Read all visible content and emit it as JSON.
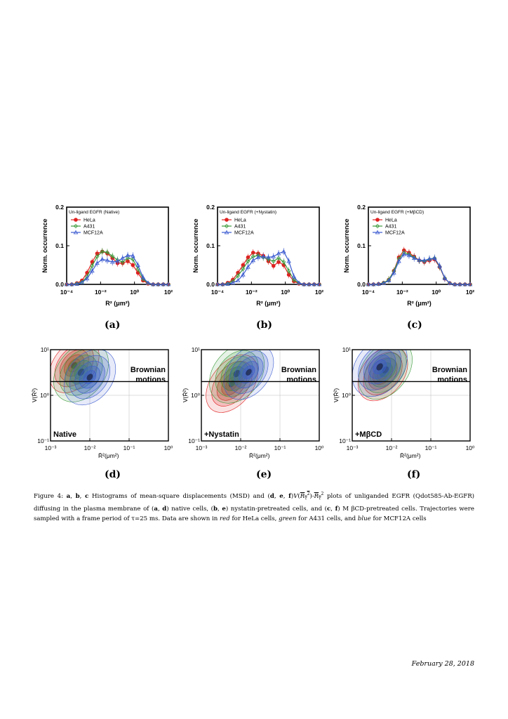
{
  "figure_number": "Figure 4:",
  "caption": {
    "parts_ab": "a",
    "b": "b",
    "c": "c",
    "text1": "Histograms of mean-square displacements (MSD) and",
    "d": "d",
    "e": "e",
    "f": "f",
    "text2": "plots of unliganded EGFR (Qdot585-Ab-EGFR) diffusing in the plasma membrane of",
    "text3": "native cells,",
    "text4": "nystatin-pretreated cells, and",
    "text5": "M βCD-pretreated cells. Trajectories were sampled with a frame period of τ=25 ms. Data are shown in",
    "red_word": "red",
    "text6": "for HeLa cells,",
    "green_word": "green",
    "text7": "for A431 cells, and",
    "blue_word": "blue",
    "text8": "for MCF12A cells"
  },
  "footer_date": "February 28, 2018",
  "panel_labels": [
    "(a)",
    "(b)",
    "(c)",
    "(d)",
    "(e)",
    "(f)"
  ],
  "colors": {
    "hela": "#e02020",
    "a431": "#3a9a3a",
    "mcf12a": "#3a5ad0"
  },
  "chart_data": [
    {
      "type": "line",
      "title": "Un-ligand EGFR (Native)",
      "xlabel": "R² (μm²)",
      "ylabel": "Norm. occurrence",
      "x_scale": "log",
      "xlim": [
        0.0001,
        100
      ],
      "ylim": [
        0,
        0.2
      ],
      "x_ticks": [
        "10⁻⁴",
        "10⁻²",
        "10⁰",
        "10²"
      ],
      "y_ticks": [
        "0.0",
        "0.1",
        "0.2"
      ],
      "x": [
        0.0001,
        0.0002,
        0.0004,
        0.0008,
        0.0016,
        0.0032,
        0.0063,
        0.0126,
        0.025,
        0.05,
        0.1,
        0.2,
        0.4,
        0.8,
        1.6,
        3.2,
        6.3,
        12.6,
        25,
        50,
        100
      ],
      "series": [
        {
          "name": "HeLa",
          "values": [
            0.0,
            0.0,
            0.003,
            0.01,
            0.03,
            0.058,
            0.08,
            0.085,
            0.08,
            0.068,
            0.055,
            0.055,
            0.06,
            0.05,
            0.03,
            0.01,
            0.002,
            0.0,
            0.0,
            0.0,
            0.0
          ]
        },
        {
          "name": "A431",
          "values": [
            0.0,
            0.0,
            0.002,
            0.006,
            0.02,
            0.048,
            0.072,
            0.085,
            0.083,
            0.073,
            0.063,
            0.058,
            0.068,
            0.065,
            0.04,
            0.014,
            0.003,
            0.0,
            0.0,
            0.0,
            0.0
          ]
        },
        {
          "name": "MCF12A",
          "values": [
            0.0,
            0.0,
            0.001,
            0.005,
            0.015,
            0.035,
            0.055,
            0.065,
            0.062,
            0.058,
            0.06,
            0.068,
            0.075,
            0.074,
            0.05,
            0.018,
            0.004,
            0.0,
            0.0,
            0.0,
            0.0
          ]
        }
      ]
    },
    {
      "type": "line",
      "title": "Un-ligand EGFR (+Nystatin)",
      "xlabel": "R² (μm²)",
      "ylabel": "Norm. occurrence",
      "x_scale": "log",
      "xlim": [
        0.0001,
        100
      ],
      "ylim": [
        0,
        0.2
      ],
      "x_ticks": [
        "10⁻⁴",
        "10⁻²",
        "10⁰",
        "10²"
      ],
      "y_ticks": [
        "0.0",
        "0.1",
        "0.2"
      ],
      "x": [
        0.0001,
        0.0002,
        0.0004,
        0.0008,
        0.0016,
        0.0032,
        0.0063,
        0.0126,
        0.025,
        0.05,
        0.1,
        0.2,
        0.4,
        0.8,
        1.6,
        3.2,
        6.3,
        12.6,
        25,
        50,
        100
      ],
      "series": [
        {
          "name": "HeLa",
          "values": [
            0.0,
            0.0,
            0.004,
            0.012,
            0.03,
            0.05,
            0.07,
            0.082,
            0.08,
            0.074,
            0.06,
            0.048,
            0.058,
            0.05,
            0.025,
            0.008,
            0.002,
            0.0,
            0.0,
            0.0,
            0.0
          ]
        },
        {
          "name": "A431",
          "values": [
            0.0,
            0.0,
            0.002,
            0.008,
            0.022,
            0.04,
            0.06,
            0.072,
            0.075,
            0.07,
            0.065,
            0.06,
            0.068,
            0.058,
            0.035,
            0.012,
            0.003,
            0.0,
            0.0,
            0.0,
            0.0
          ]
        },
        {
          "name": "MCF12A",
          "values": [
            0.0,
            0.0,
            0.001,
            0.004,
            0.01,
            0.025,
            0.045,
            0.062,
            0.07,
            0.072,
            0.07,
            0.072,
            0.08,
            0.085,
            0.06,
            0.02,
            0.004,
            0.0,
            0.0,
            0.0,
            0.0
          ]
        }
      ]
    },
    {
      "type": "line",
      "title": "Un-ligand EGFR (+MβCD)",
      "xlabel": "R² (μm²)",
      "ylabel": "Norm. occurrence",
      "x_scale": "log",
      "xlim": [
        0.0001,
        100
      ],
      "ylim": [
        0,
        0.2
      ],
      "x_ticks": [
        "10⁻⁴",
        "10⁻²",
        "10⁰",
        "10²"
      ],
      "y_ticks": [
        "0.0",
        "0.1",
        "0.2"
      ],
      "x": [
        0.0001,
        0.0002,
        0.0004,
        0.0008,
        0.0016,
        0.0032,
        0.0063,
        0.0126,
        0.025,
        0.05,
        0.1,
        0.2,
        0.4,
        0.8,
        1.6,
        3.2,
        6.3,
        12.6,
        25,
        50,
        100
      ],
      "series": [
        {
          "name": "HeLa",
          "values": [
            0.0,
            0.0,
            0.001,
            0.004,
            0.012,
            0.035,
            0.07,
            0.088,
            0.082,
            0.072,
            0.062,
            0.058,
            0.062,
            0.065,
            0.045,
            0.015,
            0.003,
            0.0,
            0.0,
            0.0,
            0.0
          ]
        },
        {
          "name": "A431",
          "values": [
            0.0,
            0.0,
            0.001,
            0.004,
            0.012,
            0.034,
            0.066,
            0.082,
            0.078,
            0.07,
            0.062,
            0.06,
            0.065,
            0.068,
            0.046,
            0.016,
            0.003,
            0.0,
            0.0,
            0.0,
            0.0
          ]
        },
        {
          "name": "MCF12A",
          "values": [
            0.0,
            0.0,
            0.001,
            0.003,
            0.01,
            0.03,
            0.06,
            0.078,
            0.075,
            0.068,
            0.063,
            0.062,
            0.066,
            0.068,
            0.048,
            0.016,
            0.003,
            0.0,
            0.0,
            0.0,
            0.0
          ]
        }
      ]
    },
    {
      "type": "heatmap",
      "annotation_main": "Brownian motions",
      "condition": "Native",
      "xlabel": "R̄²(μm²)",
      "ylabel": "V(R̄²)",
      "x_scale": "log",
      "xlim": [
        0.001,
        1
      ],
      "y_scale": "log",
      "ylim": [
        0.1,
        10
      ],
      "x_ticks": [
        "10⁻³",
        "10⁻²",
        "10⁻¹",
        "10⁰"
      ],
      "y_ticks": [
        "10⁻¹",
        "10⁰",
        "10¹"
      ],
      "threshold_y": 2,
      "series": [
        {
          "name": "HeLa",
          "center": [
            0.004,
            4.5
          ],
          "spread": [
            0.35,
            0.28
          ]
        },
        {
          "name": "A431",
          "center": [
            0.006,
            3.2
          ],
          "spread": [
            0.4,
            0.3
          ]
        },
        {
          "name": "MCF12A",
          "center": [
            0.01,
            2.5
          ],
          "spread": [
            0.38,
            0.28
          ]
        }
      ]
    },
    {
      "type": "heatmap",
      "annotation_main": "Brownian motions",
      "condition": "+Nystatin",
      "xlabel": "R̄²(μm²)",
      "ylabel": "V(R̄²)",
      "x_scale": "log",
      "xlim": [
        0.001,
        1
      ],
      "y_scale": "log",
      "ylim": [
        0.1,
        10
      ],
      "x_ticks": [
        "10⁻³",
        "10⁻²",
        "10⁻¹",
        "10⁰"
      ],
      "y_ticks": [
        "10⁻¹",
        "10⁰",
        "10¹"
      ],
      "threshold_y": 2,
      "series": [
        {
          "name": "HeLa",
          "center": [
            0.006,
            1.8
          ],
          "spread": [
            0.35,
            0.3
          ]
        },
        {
          "name": "A431",
          "center": [
            0.008,
            3.0
          ],
          "spread": [
            0.4,
            0.3
          ]
        },
        {
          "name": "MCF12A",
          "center": [
            0.016,
            3.2
          ],
          "spread": [
            0.35,
            0.28
          ]
        }
      ]
    },
    {
      "type": "heatmap",
      "annotation_main": "Brownian motions",
      "condition": "+MβCD",
      "xlabel": "R̄²(μm²)",
      "ylabel": "V(R̄²)",
      "x_scale": "log",
      "xlim": [
        0.001,
        1
      ],
      "y_scale": "log",
      "ylim": [
        0.1,
        10
      ],
      "x_ticks": [
        "10⁻³",
        "10⁻²",
        "10⁻¹",
        "10⁰"
      ],
      "y_ticks": [
        "10⁻¹",
        "10⁰",
        "10¹"
      ],
      "threshold_y": 2,
      "series": [
        {
          "name": "HeLa",
          "center": [
            0.006,
            3.0
          ],
          "spread": [
            0.35,
            0.28
          ]
        },
        {
          "name": "A431",
          "center": [
            0.007,
            3.6
          ],
          "spread": [
            0.38,
            0.3
          ]
        },
        {
          "name": "MCF12A",
          "center": [
            0.005,
            4.2
          ],
          "spread": [
            0.4,
            0.3
          ]
        }
      ]
    }
  ]
}
